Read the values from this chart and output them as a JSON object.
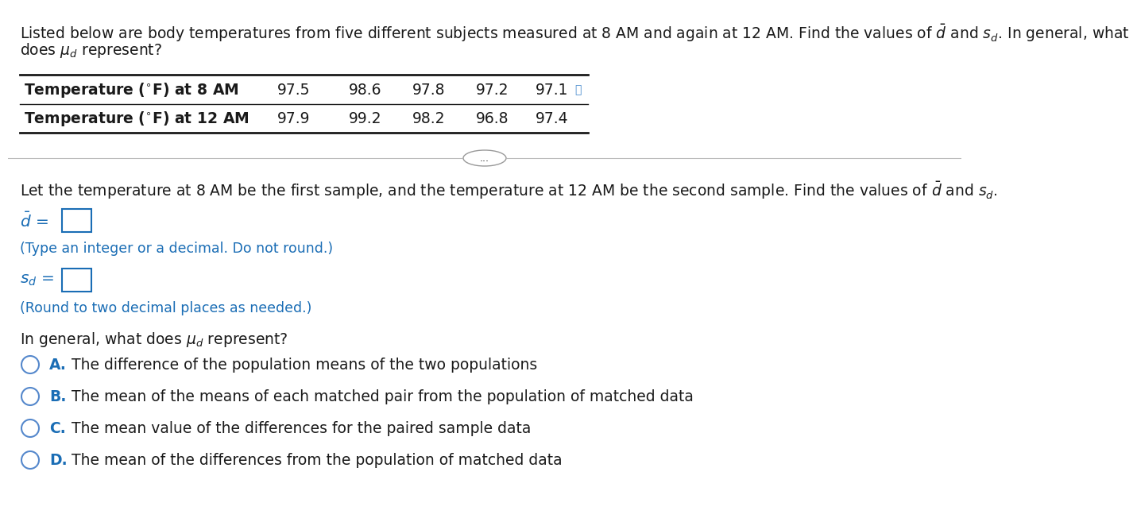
{
  "title_line1": "Listed below are body temperatures from five different subjects measured at 8 AM and again at 12 AM. Find the values of $\\bar{d}$ and $s_d$. In general, what",
  "title_line2": "does $\\mu_d$ represent?",
  "table_header_row1": "Temperature ($^{\\circ}$F) at 8 AM",
  "table_header_row2": "Temperature ($^{\\circ}$F) at 12 AM",
  "row1_values": [
    "97.5",
    "98.6",
    "97.8",
    "97.2",
    "97.1"
  ],
  "row2_values": [
    "97.9",
    "99.2",
    "98.2",
    "96.8",
    "97.4"
  ],
  "divider_text": "...",
  "instruction_text": "Let the temperature at 8 AM be the first sample, and the temperature at 12 AM be the second sample. Find the values of $\\bar{d}$ and $s_d$.",
  "d_bar_label": "$\\bar{d}$ =",
  "d_hint": "(Type an integer or a decimal. Do not round.)",
  "sd_label": "$s_d$ =",
  "sd_hint": "(Round to two decimal places as needed.)",
  "mu_question": "In general, what does $\\mu_d$ represent?",
  "choices": [
    {
      "letter": "A.",
      "text": "  The difference of the population means of the two populations"
    },
    {
      "letter": "B.",
      "text": "  The mean of the means of each matched pair from the population of matched data"
    },
    {
      "letter": "C.",
      "text": "  The mean value of the differences for the paired sample data"
    },
    {
      "letter": "D.",
      "text": "  The mean of the differences from the population of matched data"
    }
  ],
  "bg_color": "#ffffff",
  "text_color": "#1a1a1a",
  "blue_color": "#1a6db5",
  "circle_color": "#5588cc",
  "font_size_main": 13.5,
  "font_size_table": 13.5,
  "font_size_hint": 12.5,
  "font_size_choice": 13.5
}
